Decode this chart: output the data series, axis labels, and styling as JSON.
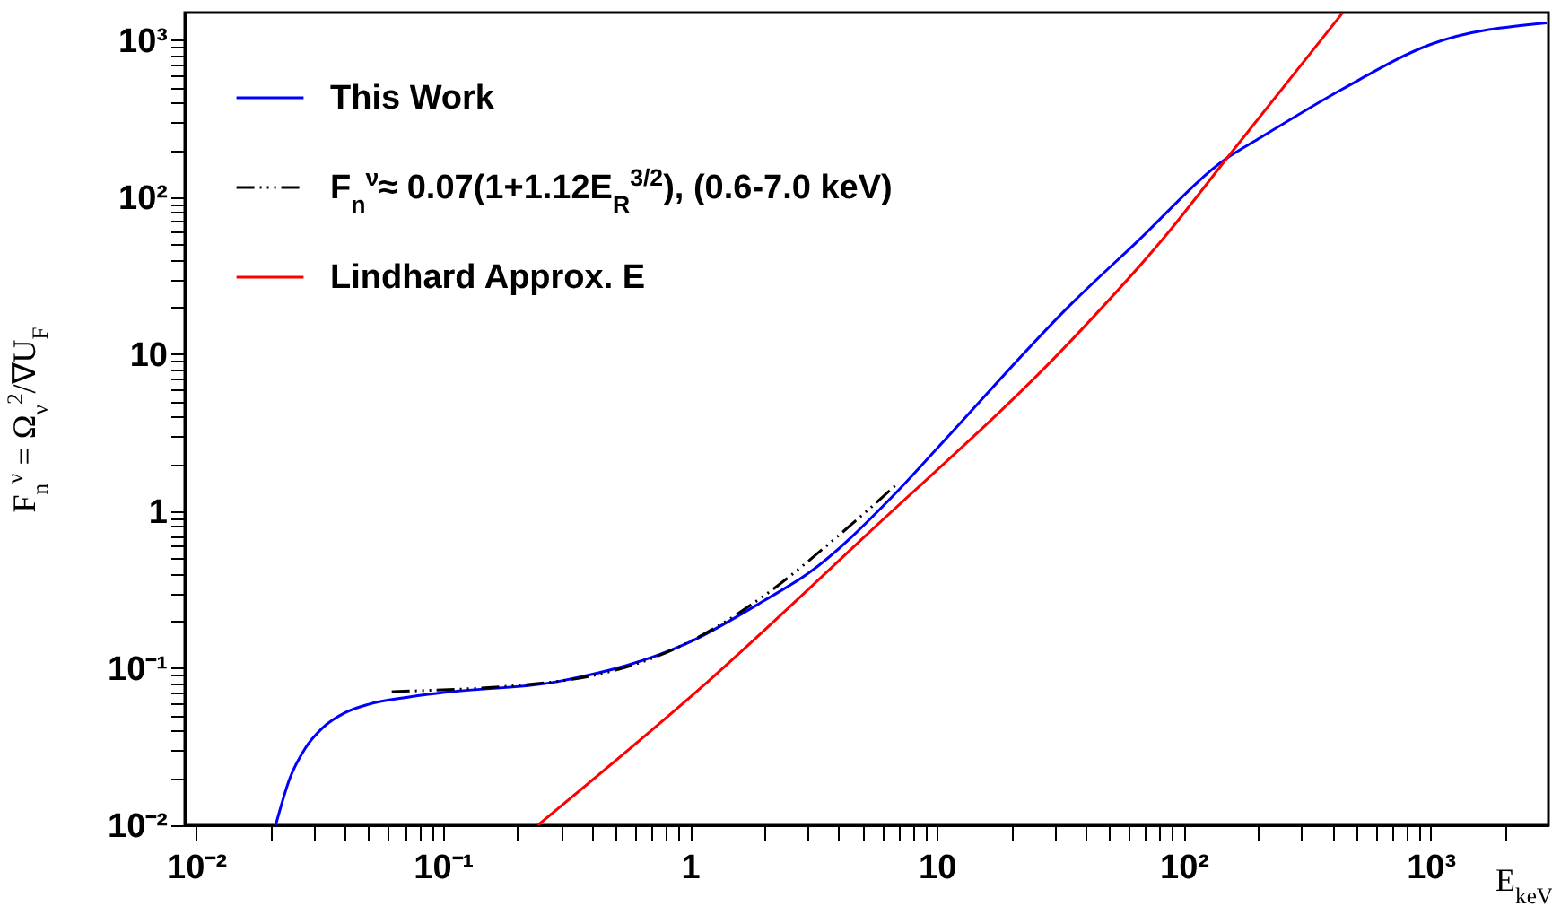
{
  "chart_data": {
    "type": "line",
    "xlabel": "E$_{keV}$",
    "ylabel": "F$_{n}$$^{ν}$ = Ω$_{ν}$$^{2}$/∇U$_{F}$",
    "log": "xy",
    "grid": false,
    "legend": "top left",
    "marker": "none",
    "xlim": [
      0.009,
      3000
    ],
    "ylim": [
      0.01,
      1500
    ],
    "xticks": [
      {
        "value": 0.01,
        "label": "10⁻²"
      },
      {
        "value": 0.02,
        "label": null
      },
      {
        "value": 0.03,
        "label": null
      },
      {
        "value": 0.04,
        "label": null
      },
      {
        "value": 0.05,
        "label": null
      },
      {
        "value": 0.06,
        "label": null
      },
      {
        "value": 0.07,
        "label": null
      },
      {
        "value": 0.08,
        "label": null
      },
      {
        "value": 0.09,
        "label": null
      },
      {
        "value": 0.1,
        "label": "10⁻¹"
      },
      {
        "value": 0.2,
        "label": null
      },
      {
        "value": 0.3,
        "label": null
      },
      {
        "value": 0.4,
        "label": null
      },
      {
        "value": 0.5,
        "label": null
      },
      {
        "value": 0.6,
        "label": null
      },
      {
        "value": 0.7,
        "label": null
      },
      {
        "value": 0.8,
        "label": null
      },
      {
        "value": 0.9,
        "label": null
      },
      1,
      {
        "value": 2,
        "label": null
      },
      {
        "value": 3,
        "label": null
      },
      {
        "value": 4,
        "label": null
      },
      {
        "value": 5,
        "label": null
      },
      {
        "value": 6,
        "label": null
      },
      {
        "value": 7,
        "label": null
      },
      {
        "value": 8,
        "label": null
      },
      {
        "value": 9,
        "label": null
      },
      10,
      {
        "value": 20,
        "label": null
      },
      {
        "value": 30,
        "label": null
      },
      {
        "value": 40,
        "label": null
      },
      {
        "value": 50,
        "label": null
      },
      {
        "value": 60,
        "label": null
      },
      {
        "value": 70,
        "label": null
      },
      {
        "value": 80,
        "label": null
      },
      {
        "value": 90,
        "label": null
      },
      {
        "value": 100,
        "label": "10²"
      },
      {
        "value": 200,
        "label": null
      },
      {
        "value": 300,
        "label": null
      },
      {
        "value": 400,
        "label": null
      },
      {
        "value": 500,
        "label": null
      },
      {
        "value": 600,
        "label": null
      },
      {
        "value": 700,
        "label": null
      },
      {
        "value": 800,
        "label": null
      },
      {
        "value": 900,
        "label": null
      },
      {
        "value": 1000,
        "label": "10³"
      },
      {
        "value": 2000,
        "label": null
      }
    ],
    "yticks": [
      {
        "value": 0.01,
        "label": "10⁻²"
      },
      {
        "value": 0.02,
        "label": null
      },
      {
        "value": 0.03,
        "label": null
      },
      {
        "value": 0.04,
        "label": null
      },
      {
        "value": 0.05,
        "label": null
      },
      {
        "value": 0.06,
        "label": null
      },
      {
        "value": 0.07,
        "label": null
      },
      {
        "value": 0.08,
        "label": null
      },
      {
        "value": 0.09,
        "label": null
      },
      {
        "value": 0.1,
        "label": "10⁻¹"
      },
      {
        "value": 0.2,
        "label": null
      },
      {
        "value": 0.3,
        "label": null
      },
      {
        "value": 0.4,
        "label": null
      },
      {
        "value": 0.5,
        "label": null
      },
      {
        "value": 0.6,
        "label": null
      },
      {
        "value": 0.7,
        "label": null
      },
      {
        "value": 0.8,
        "label": null
      },
      {
        "value": 0.9,
        "label": null
      },
      1,
      {
        "value": 2,
        "label": null
      },
      {
        "value": 3,
        "label": null
      },
      {
        "value": 4,
        "label": null
      },
      {
        "value": 5,
        "label": null
      },
      {
        "value": 6,
        "label": null
      },
      {
        "value": 7,
        "label": null
      },
      {
        "value": 8,
        "label": null
      },
      {
        "value": 9,
        "label": null
      },
      10,
      {
        "value": 20,
        "label": null
      },
      {
        "value": 30,
        "label": null
      },
      {
        "value": 40,
        "label": null
      },
      {
        "value": 50,
        "label": null
      },
      {
        "value": 60,
        "label": null
      },
      {
        "value": 70,
        "label": null
      },
      {
        "value": 80,
        "label": null
      },
      {
        "value": 90,
        "label": null
      },
      {
        "value": 100,
        "label": "10²"
      },
      {
        "value": 200,
        "label": null
      },
      {
        "value": 300,
        "label": null
      },
      {
        "value": 400,
        "label": null
      },
      {
        "value": 500,
        "label": null
      },
      {
        "value": 600,
        "label": null
      },
      {
        "value": 700,
        "label": null
      },
      {
        "value": 800,
        "label": null
      },
      {
        "value": 900,
        "label": null
      },
      {
        "value": 1000,
        "label": "10³"
      }
    ],
    "series": [
      {
        "name": "This Work",
        "color": "#0000ff",
        "line_style": "solid",
        "x": [
          0.021,
          0.024,
          0.0277,
          0.0327,
          0.04,
          0.05,
          0.07,
          0.1,
          0.3,
          1,
          2,
          3,
          6.8,
          10,
          36,
          63,
          150,
          205,
          441,
          1000,
          2950
        ],
        "values": [
          0.01,
          0.02,
          0.031,
          0.042,
          0.052,
          0.059,
          0.065,
          0.07,
          0.083,
          0.147,
          0.27,
          0.4,
          1.3,
          2.5,
          21.8,
          50,
          178,
          240,
          490,
          940,
          1290
        ]
      },
      {
        "name": "F$_{n}$$^{ν}$≈ 0.07(1+1.12E$_{R}$$^{3/2}$), (0.6-7.0 keV)",
        "color": "#000000",
        "line_style": "dashed",
        "x": [
          0.062,
          0.3,
          1,
          2,
          4,
          7
        ],
        "values": [
          0.071,
          0.083,
          0.148,
          0.29,
          0.7,
          1.52
        ]
      },
      {
        "name": "Lindhard Approx. E",
        "color": "#ff0000",
        "line_style": "solid",
        "x": [
          0.242,
          1.18,
          5,
          36,
          83,
          150,
          441
        ],
        "values": [
          0.01,
          0.082,
          0.67,
          12.8,
          55,
          178,
          1500
        ]
      }
    ]
  }
}
